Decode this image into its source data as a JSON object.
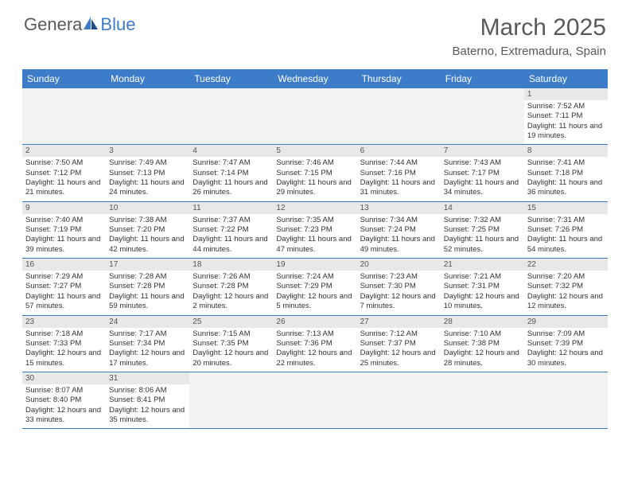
{
  "logo": {
    "text1": "Genera",
    "text2": "Blue"
  },
  "title": {
    "month": "March 2025",
    "location": "Baterno, Extremadura, Spain"
  },
  "colors": {
    "header_bg": "#3d7cc9",
    "header_text": "#ffffff",
    "numbar_bg": "#e8e8e8",
    "border": "#3d7cc9",
    "text": "#333333",
    "logo_gray": "#595959",
    "logo_blue": "#3d7cc9"
  },
  "day_names": [
    "Sunday",
    "Monday",
    "Tuesday",
    "Wednesday",
    "Thursday",
    "Friday",
    "Saturday"
  ],
  "weeks": [
    [
      null,
      null,
      null,
      null,
      null,
      null,
      {
        "n": "1",
        "sr": "7:52 AM",
        "ss": "7:11 PM",
        "dl": "11 hours and 19 minutes."
      }
    ],
    [
      {
        "n": "2",
        "sr": "7:50 AM",
        "ss": "7:12 PM",
        "dl": "11 hours and 21 minutes."
      },
      {
        "n": "3",
        "sr": "7:49 AM",
        "ss": "7:13 PM",
        "dl": "11 hours and 24 minutes."
      },
      {
        "n": "4",
        "sr": "7:47 AM",
        "ss": "7:14 PM",
        "dl": "11 hours and 26 minutes."
      },
      {
        "n": "5",
        "sr": "7:46 AM",
        "ss": "7:15 PM",
        "dl": "11 hours and 29 minutes."
      },
      {
        "n": "6",
        "sr": "7:44 AM",
        "ss": "7:16 PM",
        "dl": "11 hours and 31 minutes."
      },
      {
        "n": "7",
        "sr": "7:43 AM",
        "ss": "7:17 PM",
        "dl": "11 hours and 34 minutes."
      },
      {
        "n": "8",
        "sr": "7:41 AM",
        "ss": "7:18 PM",
        "dl": "11 hours and 36 minutes."
      }
    ],
    [
      {
        "n": "9",
        "sr": "7:40 AM",
        "ss": "7:19 PM",
        "dl": "11 hours and 39 minutes."
      },
      {
        "n": "10",
        "sr": "7:38 AM",
        "ss": "7:20 PM",
        "dl": "11 hours and 42 minutes."
      },
      {
        "n": "11",
        "sr": "7:37 AM",
        "ss": "7:22 PM",
        "dl": "11 hours and 44 minutes."
      },
      {
        "n": "12",
        "sr": "7:35 AM",
        "ss": "7:23 PM",
        "dl": "11 hours and 47 minutes."
      },
      {
        "n": "13",
        "sr": "7:34 AM",
        "ss": "7:24 PM",
        "dl": "11 hours and 49 minutes."
      },
      {
        "n": "14",
        "sr": "7:32 AM",
        "ss": "7:25 PM",
        "dl": "11 hours and 52 minutes."
      },
      {
        "n": "15",
        "sr": "7:31 AM",
        "ss": "7:26 PM",
        "dl": "11 hours and 54 minutes."
      }
    ],
    [
      {
        "n": "16",
        "sr": "7:29 AM",
        "ss": "7:27 PM",
        "dl": "11 hours and 57 minutes."
      },
      {
        "n": "17",
        "sr": "7:28 AM",
        "ss": "7:28 PM",
        "dl": "11 hours and 59 minutes."
      },
      {
        "n": "18",
        "sr": "7:26 AM",
        "ss": "7:28 PM",
        "dl": "12 hours and 2 minutes."
      },
      {
        "n": "19",
        "sr": "7:24 AM",
        "ss": "7:29 PM",
        "dl": "12 hours and 5 minutes."
      },
      {
        "n": "20",
        "sr": "7:23 AM",
        "ss": "7:30 PM",
        "dl": "12 hours and 7 minutes."
      },
      {
        "n": "21",
        "sr": "7:21 AM",
        "ss": "7:31 PM",
        "dl": "12 hours and 10 minutes."
      },
      {
        "n": "22",
        "sr": "7:20 AM",
        "ss": "7:32 PM",
        "dl": "12 hours and 12 minutes."
      }
    ],
    [
      {
        "n": "23",
        "sr": "7:18 AM",
        "ss": "7:33 PM",
        "dl": "12 hours and 15 minutes."
      },
      {
        "n": "24",
        "sr": "7:17 AM",
        "ss": "7:34 PM",
        "dl": "12 hours and 17 minutes."
      },
      {
        "n": "25",
        "sr": "7:15 AM",
        "ss": "7:35 PM",
        "dl": "12 hours and 20 minutes."
      },
      {
        "n": "26",
        "sr": "7:13 AM",
        "ss": "7:36 PM",
        "dl": "12 hours and 22 minutes."
      },
      {
        "n": "27",
        "sr": "7:12 AM",
        "ss": "7:37 PM",
        "dl": "12 hours and 25 minutes."
      },
      {
        "n": "28",
        "sr": "7:10 AM",
        "ss": "7:38 PM",
        "dl": "12 hours and 28 minutes."
      },
      {
        "n": "29",
        "sr": "7:09 AM",
        "ss": "7:39 PM",
        "dl": "12 hours and 30 minutes."
      }
    ],
    [
      {
        "n": "30",
        "sr": "8:07 AM",
        "ss": "8:40 PM",
        "dl": "12 hours and 33 minutes."
      },
      {
        "n": "31",
        "sr": "8:06 AM",
        "ss": "8:41 PM",
        "dl": "12 hours and 35 minutes."
      },
      null,
      null,
      null,
      null,
      null
    ]
  ],
  "labels": {
    "sunrise": "Sunrise:",
    "sunset": "Sunset:",
    "daylight": "Daylight:"
  }
}
